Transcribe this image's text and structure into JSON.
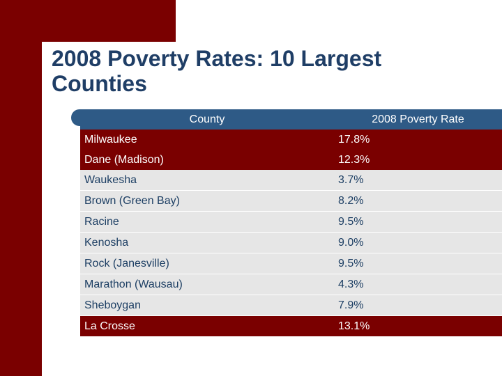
{
  "slide": {
    "title": "2008 Poverty Rates: 10 Largest Counties"
  },
  "table": {
    "headers": [
      "County",
      "2008 Poverty Rate"
    ],
    "rows": [
      {
        "county": "Milwaukee",
        "rate": "17.8%",
        "style": "dark"
      },
      {
        "county": "Dane (Madison)",
        "rate": "12.3%",
        "style": "dark"
      },
      {
        "county": "Waukesha",
        "rate": "3.7%",
        "style": "light"
      },
      {
        "county": "Brown (Green Bay)",
        "rate": "8.2%",
        "style": "light"
      },
      {
        "county": "Racine",
        "rate": "9.5%",
        "style": "light"
      },
      {
        "county": "Kenosha",
        "rate": "9.0%",
        "style": "light"
      },
      {
        "county": "Rock (Janesville)",
        "rate": "9.5%",
        "style": "light"
      },
      {
        "county": "Marathon (Wausau)",
        "rate": "4.3%",
        "style": "light"
      },
      {
        "county": "Sheboygan",
        "rate": "7.9%",
        "style": "light"
      },
      {
        "county": "La Crosse",
        "rate": "13.1%",
        "style": "dark"
      }
    ]
  },
  "colors": {
    "accent_dark_red": "#7a0000",
    "header_blue": "#2e5a86",
    "title_blue": "#1f3e66",
    "row_light": "#e6e6e6"
  }
}
